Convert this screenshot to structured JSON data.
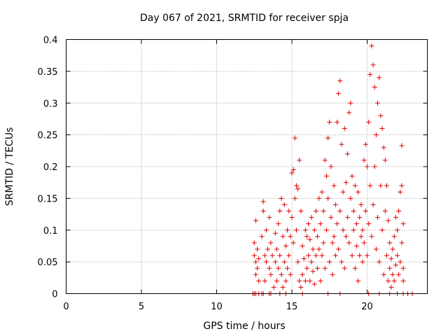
{
  "chart_data": {
    "type": "scatter",
    "title": "Day 067 of 2021, SRMTID for receiver spja",
    "xlabel": "GPS time / hours",
    "ylabel": "SRMTID / TECUs",
    "xlim": [
      0,
      24
    ],
    "ylim": [
      0,
      0.4
    ],
    "x_ticks": [
      "0",
      "5",
      "10",
      "15",
      "20"
    ],
    "x_tick_values": [
      0,
      5,
      10,
      15,
      20
    ],
    "y_ticks": [
      "0",
      "0.05",
      "0.1",
      "0.15",
      "0.2",
      "0.25",
      "0.3",
      "0.35",
      "0.4"
    ],
    "y_tick_values": [
      0,
      0.05,
      0.1,
      0.15,
      0.2,
      0.25,
      0.3,
      0.35,
      0.4
    ],
    "grid": true,
    "marker": "+",
    "color": "#e00000",
    "points": [
      [
        12.5,
        0.08
      ],
      [
        12.5,
        0.06
      ],
      [
        12.6,
        0.05
      ],
      [
        12.6,
        0.03
      ],
      [
        12.6,
        0.115
      ],
      [
        12.7,
        0.07
      ],
      [
        12.7,
        0.04
      ],
      [
        12.8,
        0.02
      ],
      [
        12.8,
        0.055
      ],
      [
        13.0,
        0.09
      ],
      [
        13.1,
        0.13
      ],
      [
        13.1,
        0.145
      ],
      [
        13.2,
        0.06
      ],
      [
        13.2,
        0.02
      ],
      [
        13.3,
        0.05
      ],
      [
        13.3,
        0.1
      ],
      [
        13.4,
        0.07
      ],
      [
        13.5,
        0.04
      ],
      [
        13.5,
        0.12
      ],
      [
        13.6,
        0.08
      ],
      [
        13.6,
        0.03
      ],
      [
        13.7,
        0.06
      ],
      [
        13.8,
        0.01
      ],
      [
        13.9,
        0.05
      ],
      [
        13.9,
        0.095
      ],
      [
        14.0,
        0.02
      ],
      [
        14.0,
        0.07
      ],
      [
        14.1,
        0.04
      ],
      [
        14.1,
        0.11
      ],
      [
        14.2,
        0.13
      ],
      [
        14.2,
        0.06
      ],
      [
        14.3,
        0.03
      ],
      [
        14.3,
        0.15
      ],
      [
        14.4,
        0.01
      ],
      [
        14.4,
        0.09
      ],
      [
        14.5,
        0.05
      ],
      [
        14.5,
        0.14
      ],
      [
        14.6,
        0.02
      ],
      [
        14.6,
        0.075
      ],
      [
        14.7,
        0.1
      ],
      [
        14.7,
        0.04
      ],
      [
        14.8,
        0.13
      ],
      [
        14.8,
        0.06
      ],
      [
        14.9,
        0.09
      ],
      [
        14.9,
        0.03
      ],
      [
        15.0,
        0.19
      ],
      [
        15.0,
        0.12
      ],
      [
        15.1,
        0.195
      ],
      [
        15.1,
        0.08
      ],
      [
        15.2,
        0.245
      ],
      [
        15.2,
        0.15
      ],
      [
        15.3,
        0.17
      ],
      [
        15.3,
        0.1
      ],
      [
        15.4,
        0.165
      ],
      [
        15.4,
        0.05
      ],
      [
        15.5,
        0.21
      ],
      [
        15.5,
        0.02
      ],
      [
        15.6,
        0.13
      ],
      [
        15.6,
        0.01
      ],
      [
        15.7,
        0.075
      ],
      [
        15.7,
        0.03
      ],
      [
        15.8,
        0.055
      ],
      [
        15.9,
        0.1
      ],
      [
        15.9,
        0.02
      ],
      [
        16.0,
        0.09
      ],
      [
        16.0,
        0.04
      ],
      [
        16.1,
        0.11
      ],
      [
        16.1,
        0.06
      ],
      [
        16.2,
        0.085
      ],
      [
        16.2,
        0.02
      ],
      [
        16.3,
        0.12
      ],
      [
        16.3,
        0.05
      ],
      [
        16.4,
        0.07
      ],
      [
        16.4,
        0.035
      ],
      [
        16.5,
        0.1
      ],
      [
        16.5,
        0.015
      ],
      [
        16.6,
        0.06
      ],
      [
        16.6,
        0.13
      ],
      [
        16.7,
        0.04
      ],
      [
        16.7,
        0.09
      ],
      [
        16.8,
        0.15
      ],
      [
        16.8,
        0.07
      ],
      [
        16.9,
        0.11
      ],
      [
        16.9,
        0.02
      ],
      [
        17.0,
        0.16
      ],
      [
        17.0,
        0.06
      ],
      [
        17.1,
        0.13
      ],
      [
        17.1,
        0.08
      ],
      [
        17.2,
        0.21
      ],
      [
        17.2,
        0.04
      ],
      [
        17.3,
        0.185
      ],
      [
        17.3,
        0.1
      ],
      [
        17.4,
        0.245
      ],
      [
        17.4,
        0.15
      ],
      [
        17.5,
        0.27
      ],
      [
        17.5,
        0.05
      ],
      [
        17.6,
        0.2
      ],
      [
        17.6,
        0.12
      ],
      [
        17.7,
        0.08
      ],
      [
        17.7,
        0.03
      ],
      [
        17.8,
        0.17
      ],
      [
        17.8,
        0.09
      ],
      [
        17.9,
        0.14
      ],
      [
        17.9,
        0.06
      ],
      [
        18.0,
        0.27
      ],
      [
        18.0,
        0.11
      ],
      [
        18.1,
        0.315
      ],
      [
        18.1,
        0.07
      ],
      [
        18.2,
        0.335
      ],
      [
        18.2,
        0.13
      ],
      [
        18.3,
        0.235
      ],
      [
        18.3,
        0.05
      ],
      [
        18.4,
        0.1
      ],
      [
        18.4,
        0.16
      ],
      [
        18.5,
        0.26
      ],
      [
        18.5,
        0.04
      ],
      [
        18.6,
        0.175
      ],
      [
        18.6,
        0.09
      ],
      [
        18.7,
        0.22
      ],
      [
        18.7,
        0.12
      ],
      [
        18.8,
        0.285
      ],
      [
        18.8,
        0.08
      ],
      [
        18.9,
        0.3
      ],
      [
        18.9,
        0.15
      ],
      [
        19.0,
        0.185
      ],
      [
        19.0,
        0.06
      ],
      [
        19.1,
        0.13
      ],
      [
        19.1,
        0.1
      ],
      [
        19.2,
        0.17
      ],
      [
        19.2,
        0.04
      ],
      [
        19.3,
        0.11
      ],
      [
        19.3,
        0.075
      ],
      [
        19.4,
        0.16
      ],
      [
        19.4,
        0.02
      ],
      [
        19.5,
        0.12
      ],
      [
        19.5,
        0.06
      ],
      [
        19.6,
        0.09
      ],
      [
        19.6,
        0.14
      ],
      [
        19.7,
        0.05
      ],
      [
        19.7,
        0.1
      ],
      [
        19.8,
        0.21
      ],
      [
        19.8,
        0.08
      ],
      [
        19.9,
        0.235
      ],
      [
        19.9,
        0.13
      ],
      [
        20.0,
        0.2
      ],
      [
        20.0,
        0.06
      ],
      [
        20.1,
        0.27
      ],
      [
        20.1,
        0.11
      ],
      [
        20.2,
        0.345
      ],
      [
        20.2,
        0.17
      ],
      [
        20.3,
        0.39
      ],
      [
        20.3,
        0.09
      ],
      [
        20.4,
        0.36
      ],
      [
        20.4,
        0.14
      ],
      [
        20.5,
        0.325
      ],
      [
        20.5,
        0.2
      ],
      [
        20.6,
        0.25
      ],
      [
        20.6,
        0.07
      ],
      [
        20.7,
        0.3
      ],
      [
        20.7,
        0.12
      ],
      [
        20.8,
        0.34
      ],
      [
        20.8,
        0.05
      ],
      [
        20.9,
        0.28
      ],
      [
        20.9,
        0.17
      ],
      [
        21.0,
        0.26
      ],
      [
        21.0,
        0.1
      ],
      [
        21.1,
        0.23
      ],
      [
        21.1,
        0.03
      ],
      [
        21.2,
        0.21
      ],
      [
        21.2,
        0.13
      ],
      [
        21.3,
        0.17
      ],
      [
        21.3,
        0.06
      ],
      [
        21.4,
        0.115
      ],
      [
        21.4,
        0.02
      ],
      [
        21.5,
        0.08
      ],
      [
        21.5,
        0.04
      ],
      [
        21.6,
        0.055
      ],
      [
        21.6,
        0.01
      ],
      [
        21.7,
        0.07
      ],
      [
        21.7,
        0.03
      ],
      [
        21.8,
        0.09
      ],
      [
        21.8,
        0.02
      ],
      [
        21.9,
        0.12
      ],
      [
        21.9,
        0.045
      ],
      [
        22.0,
        0.1
      ],
      [
        22.0,
        0.06
      ],
      [
        22.1,
        0.13
      ],
      [
        22.1,
        0.03
      ],
      [
        22.2,
        0.16
      ],
      [
        22.2,
        0.05
      ],
      [
        22.3,
        0.233
      ],
      [
        22.3,
        0.08
      ],
      [
        22.3,
        0.17
      ],
      [
        22.4,
        0.11
      ],
      [
        22.4,
        0.04
      ],
      [
        22.4,
        0.02
      ]
    ],
    "zero_points": [
      12.4,
      12.5,
      12.6,
      12.8,
      13.0,
      13.1,
      13.5,
      13.6,
      14.2,
      14.6,
      15.7,
      17.4,
      18.2,
      20.1,
      20.8,
      21.5,
      22.0,
      22.4,
      22.7,
      23.0
    ]
  }
}
